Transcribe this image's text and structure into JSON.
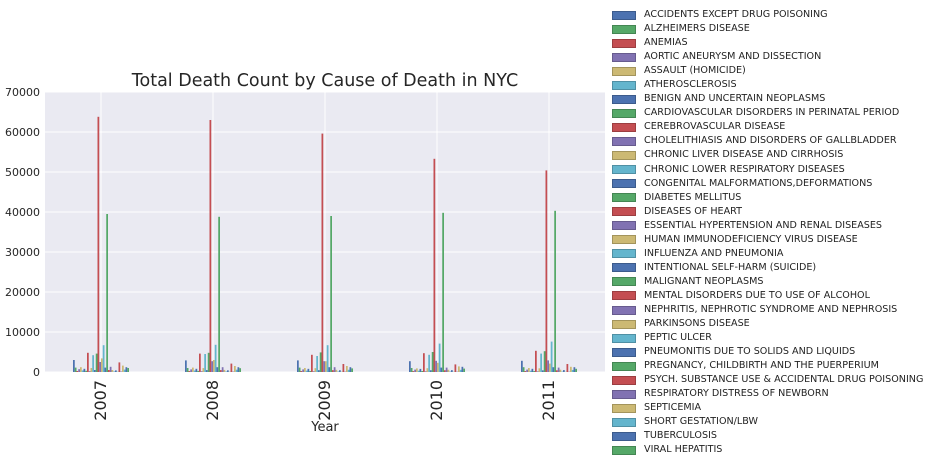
{
  "chart_data": {
    "type": "bar",
    "title": "Total Death Count by Cause of Death in NYC",
    "xlabel": "Year",
    "ylabel": "",
    "ylim": [
      0,
      70000
    ],
    "yticks": [
      "0",
      "10000",
      "20000",
      "30000",
      "40000",
      "50000",
      "60000",
      "70000"
    ],
    "categories": [
      "2007",
      "2008",
      "2009",
      "2010",
      "2011"
    ],
    "grid": true,
    "legend_position": "right",
    "colors": [
      "#4c72b0",
      "#55a868",
      "#c44e52",
      "#8172b2",
      "#ccb974",
      "#64b5cd"
    ],
    "series": [
      {
        "name": "ACCIDENTS EXCEPT DRUG POISONING",
        "values": [
          3000,
          2900,
          2900,
          2700,
          2800
        ]
      },
      {
        "name": "ALZHEIMERS DISEASE",
        "values": [
          1100,
          1000,
          1100,
          1000,
          1200
        ]
      },
      {
        "name": "ANEMIAS",
        "values": [
          250,
          230,
          240,
          220,
          230
        ]
      },
      {
        "name": "AORTIC ANEURYSM AND DISSECTION",
        "values": [
          700,
          650,
          650,
          600,
          600
        ]
      },
      {
        "name": "ASSAULT (HOMICIDE)",
        "values": [
          1200,
          1100,
          1000,
          900,
          1000
        ]
      },
      {
        "name": "ATHEROSCLEROSIS",
        "values": [
          400,
          380,
          350,
          330,
          320
        ]
      },
      {
        "name": "BENIGN AND UNCERTAIN NEOPLASMS",
        "values": [
          800,
          800,
          790,
          780,
          800
        ]
      },
      {
        "name": "CARDIOVASCULAR DISORDERS IN PERINATAL PERIOD",
        "values": [
          300,
          280,
          260,
          250,
          240
        ]
      },
      {
        "name": "CEREBROVASCULAR DISEASE",
        "values": [
          4800,
          4600,
          4300,
          4700,
          5300
        ]
      },
      {
        "name": "CHOLELITHIASIS AND DISORDERS OF GALLBLADDER",
        "values": [
          200,
          190,
          180,
          170,
          160
        ]
      },
      {
        "name": "CHRONIC LIVER DISEASE AND CIRRHOSIS",
        "values": [
          1000,
          980,
          960,
          950,
          920
        ]
      },
      {
        "name": "CHRONIC LOWER RESPIRATORY DISEASES",
        "values": [
          4200,
          4500,
          4000,
          4300,
          4600
        ]
      },
      {
        "name": "CONGENITAL MALFORMATIONS,DEFORMATIONS",
        "values": [
          500,
          480,
          460,
          440,
          420
        ]
      },
      {
        "name": "DIABETES MELLITUS",
        "values": [
          4600,
          4800,
          4900,
          5000,
          5200
        ]
      },
      {
        "name": "DISEASES OF HEART",
        "values": [
          63800,
          63000,
          59600,
          53300,
          50400
        ]
      },
      {
        "name": "ESSENTIAL HYPERTENSION AND RENAL DISEASES",
        "values": [
          2500,
          2700,
          2700,
          2800,
          2900
        ]
      },
      {
        "name": "HUMAN IMMUNODEFICIENCY VIRUS DISEASE",
        "values": [
          3400,
          3000,
          2700,
          2300,
          2100
        ]
      },
      {
        "name": "INFLUENZA AND PNEUMONIA",
        "values": [
          6700,
          6800,
          6700,
          7100,
          7600
        ]
      },
      {
        "name": "INTENTIONAL SELF-HARM (SUICIDE)",
        "values": [
          1100,
          1200,
          1200,
          1100,
          1200
        ]
      },
      {
        "name": "MALIGNANT NEOPLASMS",
        "values": [
          39500,
          38800,
          39000,
          39800,
          40300
        ]
      },
      {
        "name": "MENTAL DISORDERS DUE TO USE OF ALCOHOL",
        "values": [
          500,
          480,
          460,
          440,
          430
        ]
      },
      {
        "name": "NEPHRITIS, NEPHROTIC SYNDROME AND NEPHROSIS",
        "values": [
          1300,
          1200,
          1200,
          1100,
          1100
        ]
      },
      {
        "name": "PARKINSONS DISEASE",
        "values": [
          500,
          520,
          540,
          560,
          580
        ]
      },
      {
        "name": "PEPTIC ULCER",
        "values": [
          150,
          140,
          130,
          120,
          110
        ]
      },
      {
        "name": "PNEUMONITIS DUE TO SOLIDS AND LIQUIDS",
        "values": [
          400,
          420,
          440,
          460,
          480
        ]
      },
      {
        "name": "PREGNANCY, CHILDBIRTH AND THE PUERPERIUM",
        "values": [
          60,
          50,
          55,
          50,
          45
        ]
      },
      {
        "name": "PSYCH. SUBSTANCE USE & ACCIDENTAL DRUG POISONING",
        "values": [
          2400,
          2100,
          2000,
          1900,
          2000
        ]
      },
      {
        "name": "RESPIRATORY DISTRESS OF NEWBORN",
        "values": [
          120,
          110,
          100,
          90,
          80
        ]
      },
      {
        "name": "SEPTICEMIA",
        "values": [
          1600,
          1500,
          1500,
          1400,
          1300
        ]
      },
      {
        "name": "SHORT GESTATION/LBW",
        "values": [
          600,
          580,
          560,
          540,
          520
        ]
      },
      {
        "name": "TUBERCULOSIS",
        "values": [
          1200,
          1200,
          1200,
          1300,
          1200
        ]
      },
      {
        "name": "VIRAL HEPATITIS",
        "values": [
          1000,
          950,
          900,
          850,
          800
        ]
      }
    ]
  }
}
